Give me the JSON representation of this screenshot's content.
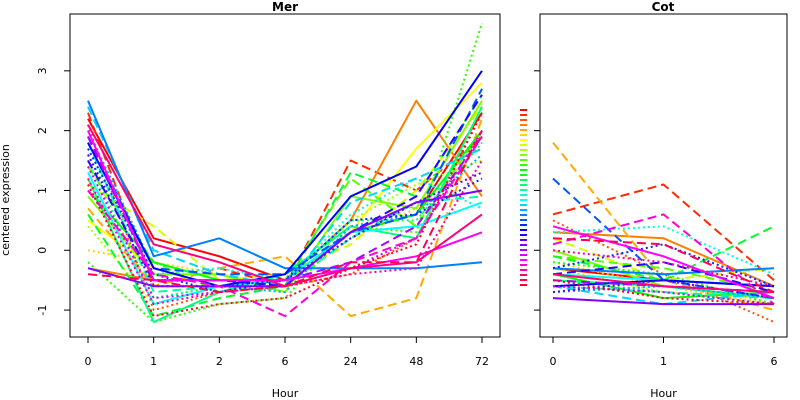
{
  "ylabel": "centered expression",
  "chart_data": [
    {
      "type": "line",
      "title": "Mer",
      "xlabel": "Hour",
      "ylabel": "centered expression",
      "categories": [
        "0",
        "1",
        "2",
        "6",
        "24",
        "48",
        "72"
      ],
      "ylim": [
        -1.45,
        3.95
      ],
      "yticks": [
        -1,
        0,
        1,
        2,
        3
      ],
      "grid": false,
      "series": [
        {
          "color": "#ff0000",
          "dash": "solid",
          "values": [
            2.2,
            0.2,
            -0.1,
            -0.5,
            0.3,
            0.6,
            2.3
          ]
        },
        {
          "color": "#ff2a00",
          "dash": "dashed",
          "values": [
            2.3,
            -0.6,
            -0.3,
            -0.6,
            1.5,
            1.0,
            1.9
          ]
        },
        {
          "color": "#ff5500",
          "dash": "dotted",
          "values": [
            2.1,
            -1.0,
            -0.7,
            -0.6,
            -0.4,
            0.2,
            2.3
          ]
        },
        {
          "color": "#ff8000",
          "dash": "solid",
          "values": [
            -0.3,
            -0.5,
            -0.5,
            -0.5,
            0.5,
            2.5,
            0.9
          ]
        },
        {
          "color": "#ffaa00",
          "dash": "dashed",
          "values": [
            0.7,
            -0.6,
            -0.3,
            -0.1,
            -1.1,
            -0.8,
            2.2
          ]
        },
        {
          "color": "#ffd500",
          "dash": "dotted",
          "values": [
            0.0,
            -0.2,
            -0.4,
            -0.6,
            0.2,
            0.7,
            2.5
          ]
        },
        {
          "color": "#ffff00",
          "dash": "solid",
          "values": [
            0.5,
            -0.3,
            -0.6,
            -0.6,
            0.3,
            1.7,
            2.8
          ]
        },
        {
          "color": "#d4ff00",
          "dash": "dashed",
          "values": [
            1.1,
            0.4,
            -0.5,
            -0.4,
            0.1,
            1.0,
            2.4
          ]
        },
        {
          "color": "#aaff00",
          "dash": "dotted",
          "values": [
            0.4,
            -0.9,
            -0.6,
            -0.7,
            0.5,
            1.1,
            1.5
          ]
        },
        {
          "color": "#80ff00",
          "dash": "solid",
          "values": [
            0.9,
            -0.4,
            -0.4,
            -0.7,
            0.9,
            0.7,
            2.5
          ]
        },
        {
          "color": "#55ff00",
          "dash": "dashed",
          "values": [
            1.4,
            -0.2,
            -0.7,
            -0.5,
            1.2,
            0.4,
            2.0
          ]
        },
        {
          "color": "#2bff00",
          "dash": "dotted",
          "values": [
            -0.2,
            -1.2,
            -0.9,
            -0.8,
            0.4,
            0.3,
            3.8
          ]
        },
        {
          "color": "#00ff00",
          "dash": "solid",
          "values": [
            1.0,
            -0.2,
            -0.5,
            -0.5,
            0.3,
            0.6,
            2.0
          ]
        },
        {
          "color": "#00ff2a",
          "dash": "dashed",
          "values": [
            0.6,
            -1.1,
            -0.8,
            -0.6,
            1.3,
            0.9,
            2.6
          ]
        },
        {
          "color": "#00ff55",
          "dash": "dotted",
          "values": [
            1.5,
            -0.8,
            -0.6,
            -0.5,
            0.5,
            0.5,
            1.8
          ]
        },
        {
          "color": "#00ff80",
          "dash": "solid",
          "values": [
            1.2,
            -1.2,
            -0.7,
            -0.4,
            0.4,
            0.2,
            2.4
          ]
        },
        {
          "color": "#00ffaa",
          "dash": "dashed",
          "values": [
            1.8,
            -0.7,
            -0.6,
            -0.6,
            0.2,
            0.8,
            0.9
          ]
        },
        {
          "color": "#00ffd4",
          "dash": "dotted",
          "values": [
            1.6,
            -0.4,
            -0.3,
            -0.5,
            0.6,
            1.2,
            0.7
          ]
        },
        {
          "color": "#00ffff",
          "dash": "solid",
          "values": [
            1.3,
            -0.9,
            -0.6,
            -0.5,
            0.3,
            0.4,
            0.8
          ]
        },
        {
          "color": "#00d5ff",
          "dash": "dashed",
          "values": [
            2.4,
            0.0,
            -0.4,
            -0.6,
            0.8,
            1.2,
            1.7
          ]
        },
        {
          "color": "#00aaff",
          "dash": "dotted",
          "values": [
            2.0,
            -0.3,
            -0.6,
            -0.7,
            0.4,
            0.6,
            1.6
          ]
        },
        {
          "color": "#0080ff",
          "dash": "solid",
          "values": [
            2.5,
            -0.1,
            0.2,
            -0.3,
            -0.3,
            -0.3,
            -0.2
          ]
        },
        {
          "color": "#0055ff",
          "dash": "dashed",
          "values": [
            1.9,
            -0.3,
            -0.4,
            -0.4,
            0.3,
            0.6,
            2.7
          ]
        },
        {
          "color": "#002bff",
          "dash": "dotted",
          "values": [
            1.7,
            -0.4,
            -0.7,
            -0.5,
            0.5,
            0.6,
            1.2
          ]
        },
        {
          "color": "#0000ff",
          "dash": "solid",
          "values": [
            1.8,
            -0.3,
            -0.6,
            -0.4,
            0.9,
            1.4,
            3.0
          ]
        },
        {
          "color": "#2a00ff",
          "dash": "dashed",
          "values": [
            1.5,
            -0.5,
            -0.5,
            -0.6,
            0.3,
            0.9,
            2.6
          ]
        },
        {
          "color": "#5500ff",
          "dash": "dotted",
          "values": [
            1.6,
            -0.6,
            -0.6,
            -0.5,
            0.2,
            0.8,
            1.3
          ]
        },
        {
          "color": "#8000ff",
          "dash": "solid",
          "values": [
            -0.3,
            -0.6,
            -0.6,
            -0.6,
            0.3,
            0.8,
            1.0
          ]
        },
        {
          "color": "#aa00ff",
          "dash": "dashed",
          "values": [
            1.9,
            -0.5,
            -0.5,
            -0.5,
            -0.2,
            0.4,
            1.9
          ]
        },
        {
          "color": "#d500ff",
          "dash": "dotted",
          "values": [
            1.4,
            -0.8,
            -0.7,
            -0.6,
            -0.3,
            0.2,
            2.0
          ]
        },
        {
          "color": "#ff00ff",
          "dash": "solid",
          "values": [
            2.0,
            -0.5,
            -0.5,
            -0.5,
            -0.3,
            -0.1,
            0.3
          ]
        },
        {
          "color": "#ff00d4",
          "dash": "dashed",
          "values": [
            1.0,
            -0.4,
            -0.6,
            -1.1,
            -0.2,
            0.2,
            1.9
          ]
        },
        {
          "color": "#ff00aa",
          "dash": "dotted",
          "values": [
            1.2,
            -0.9,
            -0.7,
            -0.6,
            -0.4,
            -0.3,
            1.5
          ]
        },
        {
          "color": "#ff0080",
          "dash": "solid",
          "values": [
            2.1,
            0.1,
            -0.2,
            -0.6,
            -0.3,
            -0.2,
            0.6
          ]
        },
        {
          "color": "#ff0055",
          "dash": "dashed",
          "values": [
            -0.4,
            -0.5,
            -0.7,
            -0.6,
            -0.2,
            -0.2,
            2.0
          ]
        },
        {
          "color": "#ff002a",
          "dash": "dotted",
          "values": [
            1.1,
            -1.1,
            -0.9,
            -0.8,
            -0.3,
            0.1,
            2.3
          ]
        }
      ]
    },
    {
      "type": "line",
      "title": "Cot",
      "xlabel": "Hour",
      "categories": [
        "0",
        "1",
        "6"
      ],
      "ylim": [
        -1.45,
        3.95
      ],
      "yticks": [
        -1,
        0,
        1,
        2,
        3
      ],
      "grid": false,
      "legend": "left",
      "series": [
        {
          "color": "#ff0000",
          "dash": "solid",
          "values": [
            -0.3,
            -0.5,
            -0.6
          ]
        },
        {
          "color": "#ff2a00",
          "dash": "dashed",
          "values": [
            0.6,
            1.1,
            -0.5
          ]
        },
        {
          "color": "#ff5500",
          "dash": "dotted",
          "values": [
            0.5,
            -0.4,
            -1.2
          ]
        },
        {
          "color": "#ff8000",
          "dash": "solid",
          "values": [
            0.3,
            0.2,
            -0.6
          ]
        },
        {
          "color": "#ffaa00",
          "dash": "dashed",
          "values": [
            1.8,
            -0.5,
            -1.0
          ]
        },
        {
          "color": "#ffd500",
          "dash": "dotted",
          "values": [
            -0.2,
            -0.6,
            -0.9
          ]
        },
        {
          "color": "#ffff00",
          "dash": "solid",
          "values": [
            -0.4,
            -0.6,
            -0.8
          ]
        },
        {
          "color": "#d4ff00",
          "dash": "dashed",
          "values": [
            0.2,
            -0.5,
            -0.3
          ]
        },
        {
          "color": "#aaff00",
          "dash": "dotted",
          "values": [
            -0.3,
            -0.7,
            -0.8
          ]
        },
        {
          "color": "#80ff00",
          "dash": "solid",
          "values": [
            0.0,
            -0.6,
            -0.8
          ]
        },
        {
          "color": "#55ff00",
          "dash": "dashed",
          "values": [
            -0.1,
            -0.3,
            -0.7
          ]
        },
        {
          "color": "#2bff00",
          "dash": "dotted",
          "values": [
            -0.2,
            -0.4,
            -0.9
          ]
        },
        {
          "color": "#00ff00",
          "dash": "solid",
          "values": [
            -0.4,
            -0.8,
            -0.7
          ]
        },
        {
          "color": "#00ff2a",
          "dash": "dashed",
          "values": [
            -0.1,
            -0.5,
            0.4
          ]
        },
        {
          "color": "#00ff55",
          "dash": "dotted",
          "values": [
            -0.5,
            -0.7,
            -0.9
          ]
        },
        {
          "color": "#00ff80",
          "dash": "solid",
          "values": [
            -0.5,
            -0.6,
            -0.8
          ]
        },
        {
          "color": "#00ffaa",
          "dash": "dashed",
          "values": [
            -0.6,
            -0.7,
            -0.8
          ]
        },
        {
          "color": "#00ffd4",
          "dash": "dotted",
          "values": [
            0.3,
            0.4,
            -0.4
          ]
        },
        {
          "color": "#00ffff",
          "dash": "solid",
          "values": [
            -0.4,
            -0.5,
            -0.6
          ]
        },
        {
          "color": "#00d5ff",
          "dash": "dashed",
          "values": [
            -0.6,
            -0.9,
            -0.7
          ]
        },
        {
          "color": "#00aaff",
          "dash": "dotted",
          "values": [
            -0.7,
            -0.6,
            -0.8
          ]
        },
        {
          "color": "#0080ff",
          "dash": "solid",
          "values": [
            -0.3,
            -0.4,
            -0.3
          ]
        },
        {
          "color": "#0055ff",
          "dash": "dashed",
          "values": [
            1.2,
            -0.5,
            -0.8
          ]
        },
        {
          "color": "#002bff",
          "dash": "dotted",
          "values": [
            -0.3,
            0.1,
            -0.6
          ]
        },
        {
          "color": "#0000ff",
          "dash": "solid",
          "values": [
            -0.6,
            -0.5,
            -0.6
          ]
        },
        {
          "color": "#2a00ff",
          "dash": "dashed",
          "values": [
            -0.4,
            -0.2,
            -0.7
          ]
        },
        {
          "color": "#5500ff",
          "dash": "dotted",
          "values": [
            -0.7,
            -0.5,
            -0.8
          ]
        },
        {
          "color": "#8000ff",
          "dash": "solid",
          "values": [
            -0.8,
            -0.9,
            -0.9
          ]
        },
        {
          "color": "#aa00ff",
          "dash": "dashed",
          "values": [
            -0.5,
            -0.6,
            -0.7
          ]
        },
        {
          "color": "#d500ff",
          "dash": "dotted",
          "values": [
            -0.6,
            -0.7,
            -0.9
          ]
        },
        {
          "color": "#ff00ff",
          "dash": "solid",
          "values": [
            0.4,
            -0.1,
            -0.8
          ]
        },
        {
          "color": "#ff00d4",
          "dash": "dashed",
          "values": [
            0.1,
            0.6,
            -0.9
          ]
        },
        {
          "color": "#ff00aa",
          "dash": "dotted",
          "values": [
            0.0,
            -0.2,
            -0.6
          ]
        },
        {
          "color": "#ff0080",
          "dash": "solid",
          "values": [
            -0.4,
            -0.6,
            -0.7
          ]
        },
        {
          "color": "#ff0055",
          "dash": "dashed",
          "values": [
            0.2,
            0.1,
            -0.7
          ]
        },
        {
          "color": "#ff002a",
          "dash": "dotted",
          "values": [
            -0.5,
            -0.8,
            -0.9
          ]
        }
      ]
    }
  ]
}
